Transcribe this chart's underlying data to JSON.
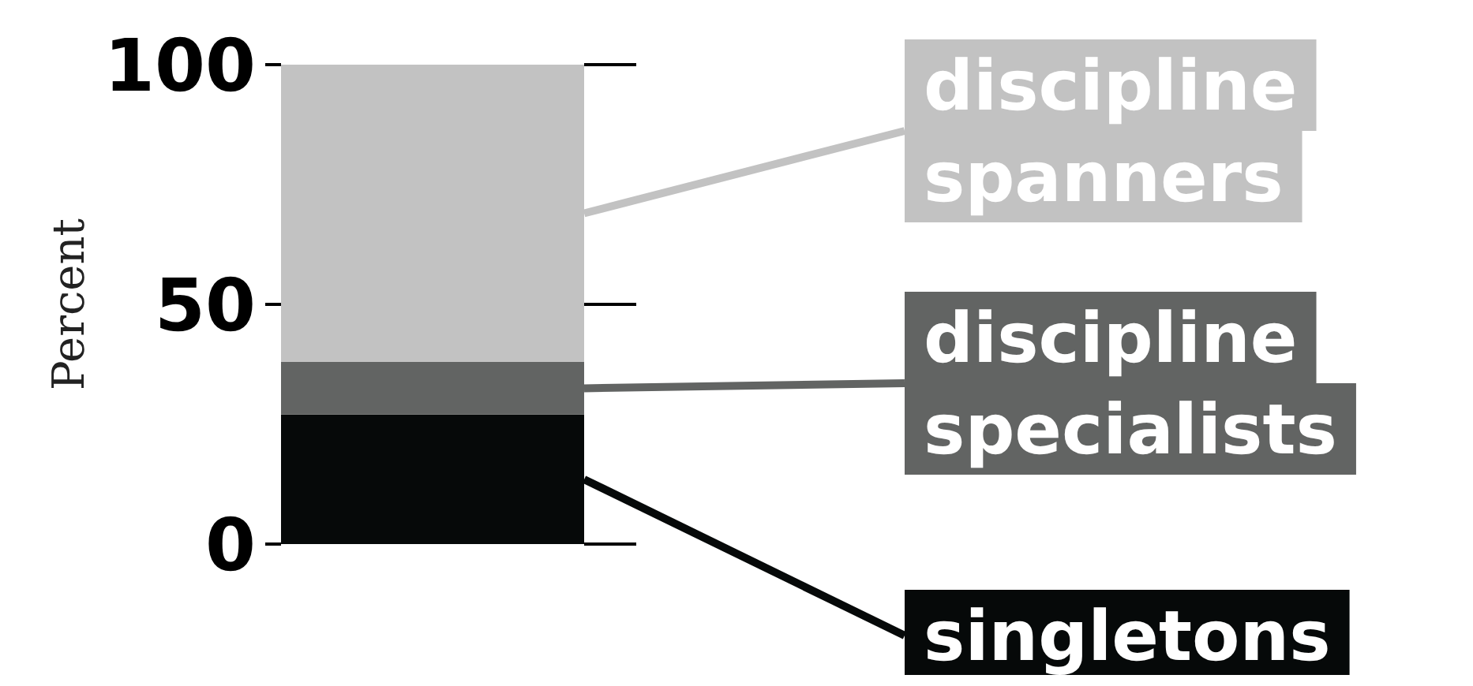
{
  "chart_data": {
    "type": "bar",
    "stacked": true,
    "categories": [
      null
    ],
    "ylabel": "Percent",
    "ylim": [
      0,
      100
    ],
    "yticks": [
      0,
      50,
      100
    ],
    "legend": "right",
    "series": [
      {
        "name": "singletons",
        "color": "#060909",
        "values": [
          27
        ]
      },
      {
        "name": "discipline specialists",
        "color": "#626463",
        "values": [
          11
        ]
      },
      {
        "name": "discipline spanners",
        "color": "#c2c2c2",
        "values": [
          62
        ]
      }
    ]
  }
}
